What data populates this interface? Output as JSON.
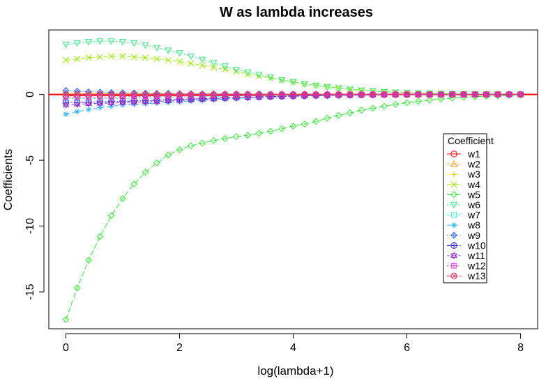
{
  "chart_data": {
    "type": "line",
    "title": "W as lambda increases",
    "xlabel": "log(lambda+1)",
    "ylabel": "Coefficients",
    "xlim": [
      -0.3,
      8.3
    ],
    "ylim": [
      -17.8,
      4.9
    ],
    "xticks": [
      "0",
      "2",
      "4",
      "6",
      "8"
    ],
    "yticks": [
      "-15",
      "-10",
      "-5",
      "0"
    ],
    "grid": false,
    "legend_position": "right",
    "legend_title": "Coefficient",
    "reference_line": {
      "y": 0,
      "color": "#ff0000"
    },
    "x": [
      0,
      0.2,
      0.4,
      0.6,
      0.8,
      1.0,
      1.2,
      1.4,
      1.6,
      1.8,
      2.0,
      2.2,
      2.4,
      2.6,
      2.8,
      3.0,
      3.2,
      3.4,
      3.6,
      3.8,
      4.0,
      4.2,
      4.4,
      4.6,
      4.8,
      5.0,
      5.2,
      5.4,
      5.6,
      5.8,
      6.0,
      6.2,
      6.4,
      6.6,
      6.8,
      7.0,
      7.2,
      7.4,
      7.6,
      7.8,
      8.0
    ],
    "series": [
      {
        "name": "w1",
        "color": "#ff0000",
        "marker": "circle",
        "values": [
          -0.1,
          -0.1,
          -0.1,
          -0.1,
          -0.1,
          -0.1,
          -0.1,
          -0.1,
          -0.1,
          -0.1,
          -0.1,
          -0.1,
          -0.1,
          -0.1,
          -0.1,
          -0.1,
          -0.1,
          -0.1,
          -0.05,
          -0.05,
          -0.05,
          -0.05,
          -0.04,
          -0.03,
          -0.03,
          -0.02,
          -0.02,
          -0.02,
          -0.01,
          -0.01,
          -0.01,
          -0.01,
          0,
          0,
          0,
          0,
          0,
          0,
          0,
          0,
          0
        ]
      },
      {
        "name": "w2",
        "color": "#ff9900",
        "marker": "triangle",
        "values": [
          0.05,
          0.05,
          0.05,
          0.05,
          0.05,
          0.04,
          0.04,
          0.04,
          0.04,
          0.03,
          0.03,
          0.03,
          0.03,
          0.02,
          0.02,
          0.02,
          0.02,
          0.02,
          0.01,
          0.01,
          0.01,
          0.01,
          0.01,
          0.01,
          0.01,
          0.01,
          0,
          0,
          0,
          0,
          0,
          0,
          0,
          0,
          0,
          0,
          0,
          0,
          0,
          0,
          0
        ]
      },
      {
        "name": "w3",
        "color": "#e6d200",
        "marker": "plus",
        "values": [
          0.1,
          0.1,
          0.1,
          0.1,
          0.1,
          0.1,
          0.1,
          0.09,
          0.09,
          0.08,
          0.08,
          0.07,
          0.07,
          0.06,
          0.06,
          0.05,
          0.05,
          0.04,
          0.04,
          0.03,
          0.03,
          0.03,
          0.02,
          0.02,
          0.02,
          0.02,
          0.01,
          0.01,
          0.01,
          0.01,
          0.01,
          0.01,
          0,
          0,
          0,
          0,
          0,
          0,
          0,
          0,
          0
        ]
      },
      {
        "name": "w4",
        "color": "#99e600",
        "marker": "x",
        "values": [
          2.6,
          2.7,
          2.8,
          2.85,
          2.9,
          2.9,
          2.85,
          2.8,
          2.7,
          2.6,
          2.5,
          2.35,
          2.2,
          2.05,
          1.9,
          1.75,
          1.55,
          1.4,
          1.25,
          1.1,
          0.95,
          0.8,
          0.7,
          0.6,
          0.5,
          0.4,
          0.33,
          0.27,
          0.22,
          0.18,
          0.14,
          0.11,
          0.09,
          0.07,
          0.05,
          0.04,
          0.03,
          0.02,
          0.02,
          0.01,
          0.01
        ]
      },
      {
        "name": "w5",
        "color": "#33e633",
        "marker": "diamond",
        "values": [
          -17.1,
          -14.7,
          -12.6,
          -10.8,
          -9.2,
          -7.9,
          -6.8,
          -5.9,
          -5.2,
          -4.6,
          -4.2,
          -3.9,
          -3.7,
          -3.5,
          -3.35,
          -3.2,
          -3.1,
          -2.95,
          -2.8,
          -2.6,
          -2.4,
          -2.25,
          -2.05,
          -1.8,
          -1.6,
          -1.4,
          -1.2,
          -1.05,
          -0.9,
          -0.75,
          -0.63,
          -0.52,
          -0.43,
          -0.35,
          -0.28,
          -0.22,
          -0.17,
          -0.13,
          -0.1,
          -0.07,
          -0.05
        ]
      },
      {
        "name": "w6",
        "color": "#33e680",
        "marker": "triangle-down",
        "values": [
          3.8,
          3.9,
          4.0,
          4.05,
          4.05,
          4.0,
          3.9,
          3.75,
          3.55,
          3.35,
          3.15,
          2.9,
          2.65,
          2.4,
          2.15,
          1.9,
          1.7,
          1.5,
          1.3,
          1.1,
          0.95,
          0.8,
          0.68,
          0.56,
          0.46,
          0.38,
          0.31,
          0.25,
          0.2,
          0.16,
          0.13,
          0.1,
          0.08,
          0.06,
          0.05,
          0.04,
          0.03,
          0.02,
          0.02,
          0.01,
          0.01
        ]
      },
      {
        "name": "w7",
        "color": "#33e6d9",
        "marker": "square",
        "values": [
          -0.3,
          -0.3,
          -0.3,
          -0.3,
          -0.3,
          -0.3,
          -0.3,
          -0.25,
          -0.25,
          -0.2,
          -0.2,
          -0.2,
          -0.15,
          -0.15,
          -0.15,
          -0.1,
          -0.1,
          -0.1,
          -0.1,
          -0.08,
          -0.07,
          -0.06,
          -0.05,
          -0.04,
          -0.03,
          -0.03,
          -0.02,
          -0.02,
          -0.01,
          -0.01,
          -0.01,
          -0.01,
          0,
          0,
          0,
          0,
          0,
          0,
          0,
          0,
          0
        ]
      },
      {
        "name": "w8",
        "color": "#33b3ff",
        "marker": "asterisk",
        "values": [
          -1.5,
          -1.3,
          -1.15,
          -1.0,
          -0.9,
          -0.8,
          -0.75,
          -0.7,
          -0.65,
          -0.6,
          -0.55,
          -0.5,
          -0.45,
          -0.4,
          -0.35,
          -0.3,
          -0.27,
          -0.24,
          -0.21,
          -0.18,
          -0.15,
          -0.12,
          -0.1,
          -0.08,
          -0.06,
          -0.05,
          -0.04,
          -0.03,
          -0.02,
          -0.02,
          -0.01,
          -0.01,
          -0.01,
          0,
          0,
          0,
          0,
          0,
          0,
          0,
          0
        ]
      },
      {
        "name": "w9",
        "color": "#3366ff",
        "marker": "diamond-plus",
        "values": [
          0.3,
          0.25,
          0.2,
          0.18,
          0.15,
          0.13,
          0.12,
          0.1,
          0.09,
          0.08,
          0.07,
          0.06,
          0.05,
          0.05,
          0.04,
          0.04,
          0.03,
          0.03,
          0.02,
          0.02,
          0.02,
          0.02,
          0.01,
          0.01,
          0.01,
          0.01,
          0.01,
          0,
          0,
          0,
          0,
          0,
          0,
          0,
          0,
          0,
          0,
          0,
          0,
          0,
          0
        ]
      },
      {
        "name": "w10",
        "color": "#3333cc",
        "marker": "circle-plus",
        "values": [
          -0.6,
          -0.6,
          -0.6,
          -0.58,
          -0.55,
          -0.52,
          -0.5,
          -0.47,
          -0.44,
          -0.41,
          -0.38,
          -0.35,
          -0.32,
          -0.29,
          -0.26,
          -0.23,
          -0.2,
          -0.18,
          -0.16,
          -0.14,
          -0.12,
          -0.1,
          -0.08,
          -0.07,
          -0.06,
          -0.05,
          -0.04,
          -0.03,
          -0.02,
          -0.02,
          -0.01,
          -0.01,
          -0.01,
          0,
          0,
          0,
          0,
          0,
          0,
          0,
          0
        ]
      },
      {
        "name": "w11",
        "color": "#9933cc",
        "marker": "star-of-david",
        "values": [
          -0.8,
          -0.75,
          -0.7,
          -0.68,
          -0.65,
          -0.62,
          -0.6,
          -0.57,
          -0.54,
          -0.5,
          -0.46,
          -0.42,
          -0.38,
          -0.34,
          -0.3,
          -0.27,
          -0.24,
          -0.21,
          -0.18,
          -0.16,
          -0.14,
          -0.12,
          -0.1,
          -0.08,
          -0.07,
          -0.06,
          -0.05,
          -0.04,
          -0.03,
          -0.02,
          -0.02,
          -0.01,
          -0.01,
          -0.01,
          0,
          0,
          0,
          0,
          0,
          0,
          0
        ]
      },
      {
        "name": "w12",
        "color": "#e633e6",
        "marker": "square-plus",
        "values": [
          -0.2,
          -0.2,
          -0.2,
          -0.2,
          -0.2,
          -0.18,
          -0.16,
          -0.15,
          -0.14,
          -0.13,
          -0.12,
          -0.11,
          -0.1,
          -0.09,
          -0.08,
          -0.07,
          -0.06,
          -0.05,
          -0.05,
          -0.04,
          -0.04,
          -0.03,
          -0.03,
          -0.02,
          -0.02,
          -0.02,
          -0.01,
          -0.01,
          -0.01,
          -0.01,
          0,
          0,
          0,
          0,
          0,
          0,
          0,
          0,
          0,
          0,
          0
        ]
      },
      {
        "name": "w13",
        "color": "#e6336b",
        "marker": "circle-cross",
        "values": [
          0,
          0,
          0,
          0,
          0,
          0,
          0,
          0,
          0,
          0,
          0,
          0,
          0,
          0,
          0,
          0,
          0,
          0,
          0,
          0,
          0,
          0,
          0,
          0,
          0,
          0,
          0,
          0,
          0,
          0,
          0,
          0,
          0,
          0,
          0,
          0,
          0,
          0,
          0,
          0,
          0
        ]
      }
    ]
  }
}
